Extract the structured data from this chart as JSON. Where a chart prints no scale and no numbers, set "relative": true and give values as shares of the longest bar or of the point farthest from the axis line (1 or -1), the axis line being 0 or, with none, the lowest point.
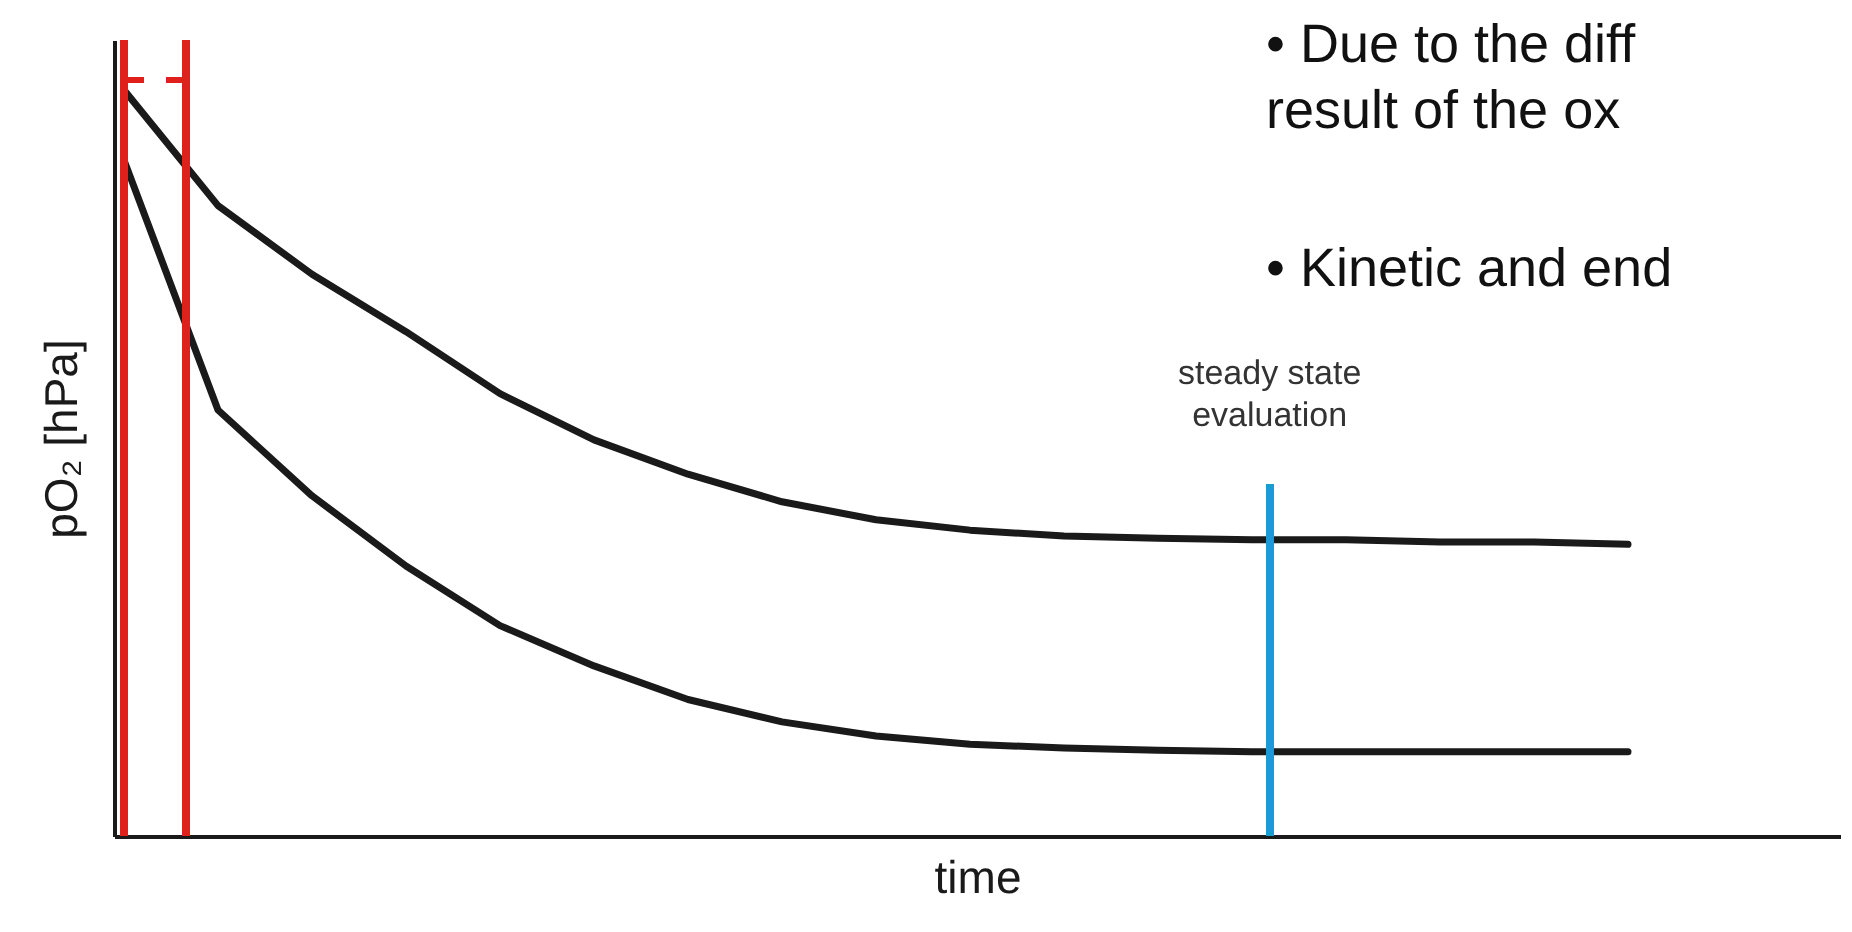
{
  "chart_data": {
    "type": "line",
    "relative": true,
    "xlabel": "time",
    "ylabel": "pO₂ [hPa]",
    "tick_labels": false,
    "grid": false,
    "legend": false,
    "marker": "none",
    "line_style": "solid",
    "categories": [
      null,
      null,
      null,
      null,
      null,
      null,
      null,
      null,
      null,
      null,
      null,
      null,
      null,
      null,
      null,
      null,
      null
    ],
    "series": [
      {
        "color": "#1a1a1a",
        "values": [
          1,
          0.845,
          0.753,
          0.676,
          0.593,
          0.531,
          0.485,
          0.448,
          0.424,
          0.41,
          0.402,
          0.399,
          0.397,
          0.397,
          0.394,
          0.394,
          0.391
        ]
      },
      {
        "color": "#1a1a1a",
        "values": [
          0.906,
          0.571,
          0.456,
          0.362,
          0.282,
          0.228,
          0.183,
          0.153,
          0.134,
          0.123,
          0.118,
          0.115,
          0.113,
          0.113,
          0.113,
          0.113,
          0.113
        ]
      }
    ],
    "annotations": [
      "• Due to the diff\nresult of the ox",
      "• Kinetic and end",
      "steady state\nevaluation"
    ]
  }
}
